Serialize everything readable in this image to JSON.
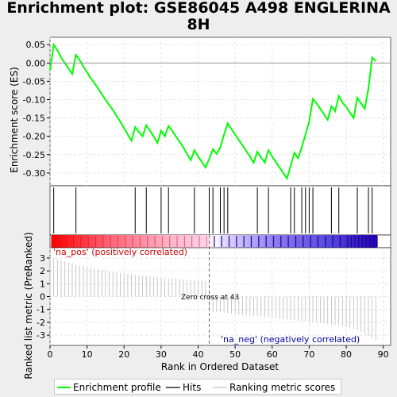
{
  "title_line1": "Enrichment plot: GSE86045 A498 ENGLERINA",
  "title_line2": "8H",
  "colors": {
    "es_line": "#00ff00",
    "hits": "#000000",
    "ranking": "#bbbbbb",
    "pos_label": "#cc0000",
    "neg_label": "#0000aa"
  },
  "chart_data": [
    {
      "type": "line",
      "name": "enrichment-profile",
      "ylabel": "Enrichment score (ES)",
      "ylim": [
        -0.335,
        0.07
      ],
      "xlim": [
        0,
        92
      ],
      "y_ticks": [
        "0.05",
        "0.00",
        "-0.05",
        "-0.10",
        "-0.15",
        "-0.20",
        "-0.25",
        "-0.30"
      ],
      "y_tick_values": [
        0.05,
        0.0,
        -0.05,
        -0.1,
        -0.15,
        -0.2,
        -0.25,
        -0.3
      ],
      "grid": true,
      "points": {
        "x": [
          0,
          1,
          2,
          3,
          4,
          5,
          6,
          7,
          8,
          9,
          10,
          11,
          12,
          13,
          14,
          15,
          16,
          17,
          18,
          19,
          20,
          21,
          22,
          23,
          24,
          25,
          26,
          27,
          28,
          29,
          30,
          31,
          32,
          33,
          34,
          35,
          36,
          37,
          38,
          39,
          40,
          41,
          42,
          43,
          44,
          45,
          46,
          47,
          48,
          49,
          50,
          51,
          52,
          53,
          54,
          55,
          56,
          57,
          58,
          59,
          60,
          61,
          62,
          63,
          64,
          65,
          66,
          67,
          68,
          69,
          70,
          71,
          72,
          73,
          74,
          75,
          76,
          77,
          78,
          79,
          80,
          81,
          82,
          83,
          84,
          85,
          86,
          87,
          88
        ],
        "y": [
          -0.02,
          0.05,
          0.035,
          0.015,
          0.0,
          -0.015,
          -0.03,
          0.022,
          0.008,
          -0.01,
          -0.025,
          -0.042,
          -0.055,
          -0.07,
          -0.085,
          -0.1,
          -0.115,
          -0.128,
          -0.145,
          -0.16,
          -0.178,
          -0.195,
          -0.212,
          -0.175,
          -0.188,
          -0.2,
          -0.17,
          -0.185,
          -0.2,
          -0.218,
          -0.185,
          -0.2,
          -0.172,
          -0.185,
          -0.2,
          -0.215,
          -0.23,
          -0.248,
          -0.265,
          -0.238,
          -0.255,
          -0.27,
          -0.285,
          -0.262,
          -0.235,
          -0.248,
          -0.23,
          -0.195,
          -0.165,
          -0.18,
          -0.195,
          -0.21,
          -0.225,
          -0.24,
          -0.255,
          -0.272,
          -0.242,
          -0.258,
          -0.272,
          -0.238,
          -0.255,
          -0.27,
          -0.285,
          -0.3,
          -0.315,
          -0.28,
          -0.245,
          -0.26,
          -0.23,
          -0.195,
          -0.16,
          -0.098,
          -0.11,
          -0.125,
          -0.14,
          -0.155,
          -0.118,
          -0.132,
          -0.09,
          -0.108,
          -0.12,
          -0.135,
          -0.15,
          -0.095,
          -0.11,
          -0.125,
          -0.07,
          0.015,
          0.005
        ]
      }
    },
    {
      "type": "scatter",
      "name": "hits",
      "hit_ranks": [
        1,
        7,
        23,
        26,
        30,
        32,
        39,
        43,
        44,
        46,
        47,
        48,
        56,
        59,
        65,
        66,
        68,
        69,
        70,
        71,
        76,
        78,
        83,
        86,
        87
      ]
    },
    {
      "type": "bar",
      "name": "ranking-metric",
      "ylabel": "Ranked list metric (PreRanked)",
      "xlabel": "Rank in Ordered Dataset",
      "ylim": [
        -3.8,
        3.8
      ],
      "xlim": [
        0,
        92
      ],
      "y_ticks": [
        "3",
        "2",
        "1",
        "0",
        "-1",
        "-2",
        "-3"
      ],
      "y_tick_values": [
        3,
        2,
        1,
        0,
        -1,
        -2,
        -3
      ],
      "x_ticks": [
        "0",
        "10",
        "20",
        "30",
        "40",
        "50",
        "60",
        "70",
        "80",
        "90"
      ],
      "x_tick_values": [
        0,
        10,
        20,
        30,
        40,
        50,
        60,
        70,
        80,
        90
      ],
      "grid": true,
      "values": [
        3.1,
        3.0,
        2.9,
        2.8,
        2.72,
        2.65,
        2.58,
        2.5,
        2.43,
        2.36,
        2.3,
        2.24,
        2.18,
        2.12,
        2.07,
        2.02,
        1.97,
        1.92,
        1.88,
        1.84,
        1.8,
        1.76,
        1.72,
        1.68,
        1.65,
        1.62,
        1.59,
        1.56,
        1.53,
        1.5,
        1.47,
        1.45,
        1.42,
        1.4,
        1.38,
        1.35,
        1.33,
        1.31,
        1.29,
        1.27,
        1.25,
        1.23,
        1.21,
        -1.15,
        -1.18,
        -1.2,
        -1.23,
        -1.26,
        -1.29,
        -1.32,
        -1.35,
        -1.38,
        -1.41,
        -1.44,
        -1.47,
        -1.5,
        -1.53,
        -1.56,
        -1.59,
        -1.62,
        -1.65,
        -1.68,
        -1.71,
        -1.74,
        -1.77,
        -1.8,
        -1.83,
        -1.86,
        -1.89,
        -1.92,
        -1.95,
        -1.98,
        -2.01,
        -2.04,
        -2.08,
        -2.12,
        -2.16,
        -2.2,
        -2.25,
        -2.3,
        -2.36,
        -2.43,
        -2.52,
        -2.62,
        -2.75,
        -2.9,
        -3.05,
        -3.2,
        -3.4
      ],
      "zero_cross_label": "Zero cross at 43",
      "zero_cross": 43,
      "pos_label": "'na_pos' (positively correlated)",
      "neg_label": "'na_neg' (negatively correlated)"
    }
  ],
  "legend": {
    "items": [
      {
        "label": "Enrichment profile",
        "color": "#00ff00"
      },
      {
        "label": "Hits",
        "color": "#000000"
      },
      {
        "label": "Ranking metric scores",
        "color": "#bbbbbb"
      }
    ]
  }
}
